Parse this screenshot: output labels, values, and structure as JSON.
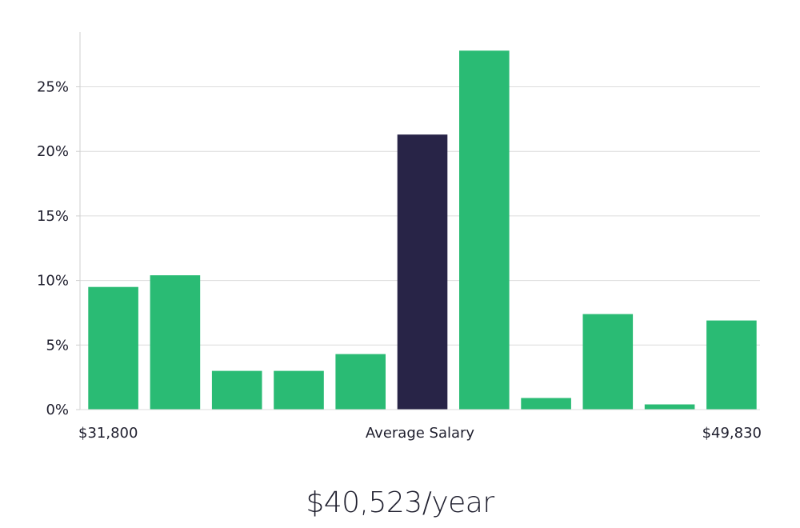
{
  "chart_data": {
    "type": "bar",
    "title": "",
    "xlabel": "Average Salary",
    "ylabel": "",
    "ylim": [
      0,
      29
    ],
    "yticks": [
      0,
      5,
      10,
      15,
      20,
      25
    ],
    "ytick_labels": [
      "0%",
      "5%",
      "10%",
      "15%",
      "20%",
      "25%"
    ],
    "x_range_labels": {
      "min": "$31,800",
      "center": "Average Salary",
      "max": "$49,830"
    },
    "values": [
      9.5,
      10.4,
      3.0,
      3.0,
      4.3,
      21.3,
      27.8,
      0.9,
      7.4,
      0.4,
      6.9
    ],
    "highlight_index": 5,
    "colors": {
      "bar": "#2abb74",
      "highlight": "#282447",
      "grid": "#dcdcdc",
      "axis": "#cfcfcf"
    },
    "grid": true
  },
  "summary": {
    "average_salary": "$40,523/year"
  }
}
